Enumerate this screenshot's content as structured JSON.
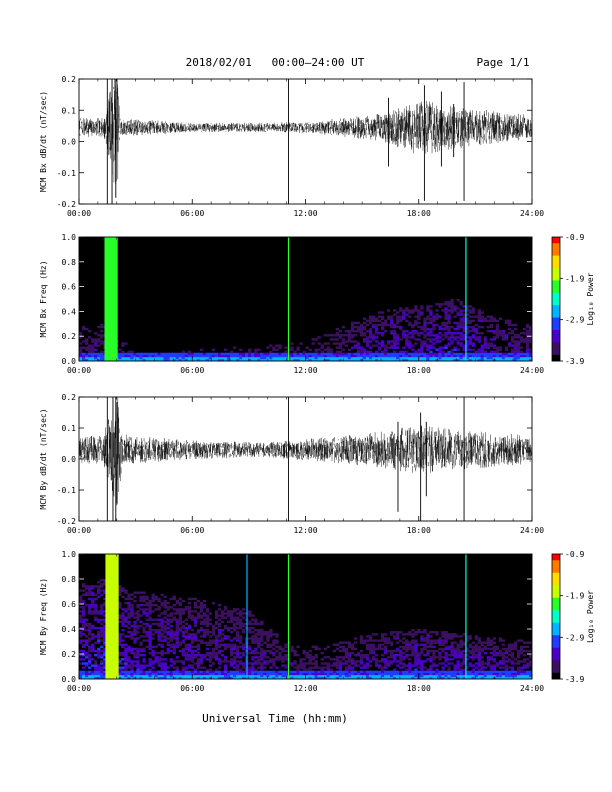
{
  "header": {
    "title": "2018/02/01   00:00–24:00 UT",
    "page": "Page 1/1"
  },
  "colors": {
    "trace": "#000000",
    "colormap": [
      "#000000",
      "#3c1060",
      "#4b00c8",
      "#1f3cff",
      "#00b4ff",
      "#00ffc8",
      "#28ff28",
      "#c8ff00",
      "#ffdc00",
      "#ff7800",
      "#ff0000"
    ]
  },
  "chart_data": [
    {
      "type": "line",
      "ylabel": "MCM Bx dB/dt (nT/sec)",
      "ylim": [
        -0.2,
        0.2
      ],
      "yticks": [
        "-0.2",
        "-0.1",
        "0.0",
        "0.1",
        "0.2"
      ],
      "xlim": [
        0,
        24
      ],
      "xticks": [
        "00:00",
        "06:00",
        "12:00",
        "18:00",
        "24:00"
      ],
      "baseline": 0.045,
      "envelope": [
        {
          "t": 0,
          "a": 0.03
        },
        {
          "t": 1.3,
          "a": 0.03
        },
        {
          "t": 2.0,
          "a": 0.22
        },
        {
          "t": 2.2,
          "a": 0.03
        },
        {
          "t": 6,
          "a": 0.015
        },
        {
          "t": 10,
          "a": 0.015
        },
        {
          "t": 12,
          "a": 0.02
        },
        {
          "t": 14,
          "a": 0.03
        },
        {
          "t": 16,
          "a": 0.045
        },
        {
          "t": 18,
          "a": 0.09
        },
        {
          "t": 21,
          "a": 0.06
        },
        {
          "t": 24,
          "a": 0.04
        }
      ],
      "spikes": [
        {
          "t": 1.5,
          "y": [
            -0.21,
            0.21
          ]
        },
        {
          "t": 1.75,
          "y": [
            -0.21,
            0.21
          ]
        },
        {
          "t": 1.95,
          "y": [
            -0.18,
            0.21
          ]
        },
        {
          "t": 11.1,
          "y": [
            -0.21,
            0.21
          ]
        },
        {
          "t": 16.4,
          "y": [
            -0.08,
            0.14
          ]
        },
        {
          "t": 18.3,
          "y": [
            -0.19,
            0.18
          ]
        },
        {
          "t": 19.2,
          "y": [
            -0.08,
            0.16
          ]
        },
        {
          "t": 19.85,
          "y": [
            -0.05,
            0.12
          ]
        },
        {
          "t": 20.4,
          "y": [
            -0.19,
            0.19
          ]
        }
      ],
      "seed": 7
    },
    {
      "type": "heatmap",
      "ylabel": "MCM Bx Freq (Hz)",
      "ylim": [
        0.0,
        1.0
      ],
      "yticks": [
        "0.0",
        "0.2",
        "0.4",
        "0.6",
        "0.8",
        "1.0"
      ],
      "xlim": [
        0,
        24
      ],
      "xticks": [
        "00:00",
        "06:00",
        "12:00",
        "18:00",
        "24:00"
      ],
      "colorbar": {
        "label": "Log₁₀ Power",
        "range": [
          -3.9,
          -0.9
        ],
        "ticks": [
          "-0.9",
          "-1.9",
          "-2.9",
          "-3.9"
        ]
      },
      "bands": [
        {
          "t0": 1.35,
          "t1": 2.05,
          "level": 0.55
        }
      ],
      "lines": [
        {
          "t": 11.1,
          "level": 0.6
        },
        {
          "t": 20.5,
          "level": 0.45
        }
      ],
      "activity": [
        {
          "t": 0,
          "f": 0.28,
          "l": 0.14
        },
        {
          "t": 1.3,
          "f": 0.3,
          "l": 0.15
        },
        {
          "t": 3,
          "f": 0.1,
          "l": 0.08
        },
        {
          "t": 8,
          "f": 0.12,
          "l": 0.08
        },
        {
          "t": 12,
          "f": 0.15,
          "l": 0.1
        },
        {
          "t": 14,
          "f": 0.28,
          "l": 0.14
        },
        {
          "t": 16,
          "f": 0.4,
          "l": 0.2
        },
        {
          "t": 18,
          "f": 0.45,
          "l": 0.2
        },
        {
          "t": 20,
          "f": 0.5,
          "l": 0.22
        },
        {
          "t": 22,
          "f": 0.35,
          "l": 0.18
        },
        {
          "t": 24,
          "f": 0.3,
          "l": 0.14
        }
      ],
      "seed": 11
    },
    {
      "type": "line",
      "ylabel": "MCM By dB/dt (nT/sec)",
      "ylim": [
        -0.2,
        0.2
      ],
      "yticks": [
        "-0.2",
        "-0.1",
        "0.0",
        "0.1",
        "0.2"
      ],
      "xlim": [
        0,
        24
      ],
      "xticks": [
        "00:00",
        "06:00",
        "12:00",
        "18:00",
        "24:00"
      ],
      "baseline": 0.03,
      "envelope": [
        {
          "t": 0,
          "a": 0.045
        },
        {
          "t": 1.3,
          "a": 0.05
        },
        {
          "t": 2.0,
          "a": 0.2
        },
        {
          "t": 2.3,
          "a": 0.05
        },
        {
          "t": 6,
          "a": 0.03
        },
        {
          "t": 10,
          "a": 0.025
        },
        {
          "t": 12,
          "a": 0.035
        },
        {
          "t": 14,
          "a": 0.045
        },
        {
          "t": 16,
          "a": 0.06
        },
        {
          "t": 18,
          "a": 0.08
        },
        {
          "t": 21,
          "a": 0.06
        },
        {
          "t": 24,
          "a": 0.045
        }
      ],
      "spikes": [
        {
          "t": 1.5,
          "y": [
            -0.21,
            0.21
          ]
        },
        {
          "t": 1.8,
          "y": [
            -0.21,
            0.21
          ]
        },
        {
          "t": 1.95,
          "y": [
            -0.21,
            0.21
          ]
        },
        {
          "t": 11.1,
          "y": [
            -0.21,
            0.21
          ]
        },
        {
          "t": 16.9,
          "y": [
            -0.17,
            0.12
          ]
        },
        {
          "t": 18.1,
          "y": [
            -0.21,
            0.15
          ]
        },
        {
          "t": 18.4,
          "y": [
            -0.12,
            0.12
          ]
        },
        {
          "t": 20.4,
          "y": [
            -0.21,
            0.21
          ]
        }
      ],
      "seed": 23
    },
    {
      "type": "heatmap",
      "ylabel": "MCM By Freq (Hz)",
      "ylim": [
        0.0,
        1.0
      ],
      "yticks": [
        "0.0",
        "0.2",
        "0.4",
        "0.6",
        "0.8",
        "1.0"
      ],
      "xlim": [
        0,
        24
      ],
      "xticks": [
        "00:00",
        "06:00",
        "12:00",
        "18:00",
        "24:00"
      ],
      "colorbar": {
        "label": "Log₁₀ Power",
        "range": [
          -3.9,
          -0.9
        ],
        "ticks": [
          "-0.9",
          "-1.9",
          "-2.9",
          "-3.9"
        ]
      },
      "bands": [
        {
          "t0": 1.4,
          "t1": 2.1,
          "level": 0.72
        }
      ],
      "lines": [
        {
          "t": 11.1,
          "level": 0.6
        },
        {
          "t": 20.5,
          "level": 0.45
        },
        {
          "t": 8.9,
          "level": 0.35
        }
      ],
      "activity": [
        {
          "t": 0,
          "f": 0.75,
          "l": 0.2
        },
        {
          "t": 1.3,
          "f": 0.8,
          "l": 0.24
        },
        {
          "t": 3,
          "f": 0.7,
          "l": 0.2
        },
        {
          "t": 6,
          "f": 0.65,
          "l": 0.18
        },
        {
          "t": 9,
          "f": 0.55,
          "l": 0.17
        },
        {
          "t": 11,
          "f": 0.3,
          "l": 0.14
        },
        {
          "t": 13,
          "f": 0.25,
          "l": 0.14
        },
        {
          "t": 15,
          "f": 0.35,
          "l": 0.18
        },
        {
          "t": 18,
          "f": 0.4,
          "l": 0.2
        },
        {
          "t": 21,
          "f": 0.35,
          "l": 0.18
        },
        {
          "t": 24,
          "f": 0.3,
          "l": 0.15
        }
      ],
      "seed": 31
    }
  ],
  "xtitle": "Universal Time (hh:mm)"
}
